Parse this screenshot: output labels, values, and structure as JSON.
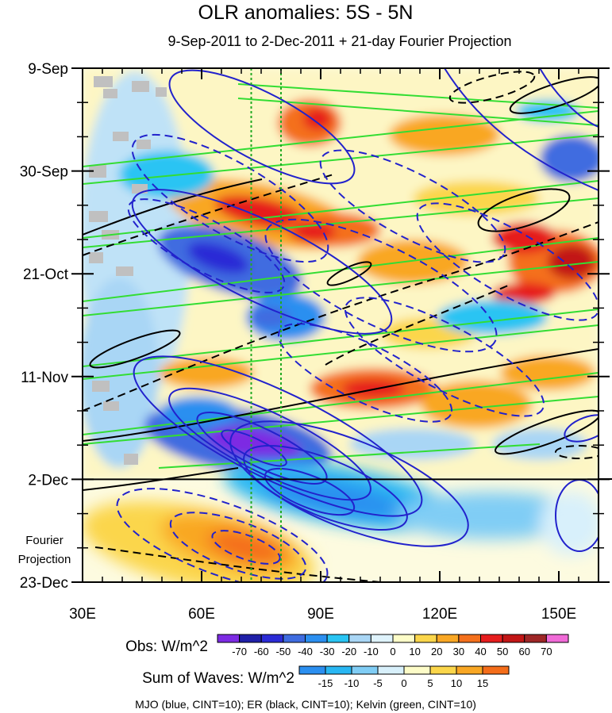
{
  "chart_data": {
    "type": "heatmap",
    "title": "OLR anomalies: 5S - 5N",
    "subtitle": "9-Sep-2011 to 2-Dec-2011 + 21-day Fourier Projection",
    "x_ticks": [
      {
        "label": "30E",
        "value": 30
      },
      {
        "label": "60E",
        "value": 60
      },
      {
        "label": "90E",
        "value": 90
      },
      {
        "label": "120E",
        "value": 120
      },
      {
        "label": "150E",
        "value": 150
      }
    ],
    "xlim": [
      30,
      160
    ],
    "y_ticks": [
      {
        "label": "9-Sep",
        "day": 0
      },
      {
        "label": "30-Sep",
        "day": 21
      },
      {
        "label": "21-Oct",
        "day": 42
      },
      {
        "label": "11-Nov",
        "day": 63
      },
      {
        "label": "2-Dec",
        "day": 84
      },
      {
        "label": "23-Dec",
        "day": 105
      }
    ],
    "ylim_days": [
      0,
      105
    ],
    "projection_start_day": 84,
    "projection_label_line1": "Fourier",
    "projection_label_line2": "Projection",
    "reference_lines_lon": [
      72.5,
      80
    ],
    "obs_colorbar": {
      "title": "Obs: W/m^2",
      "levels": [
        "-70",
        "-60",
        "-50",
        "-40",
        "-30",
        "-20",
        "-10",
        "0",
        "10",
        "20",
        "30",
        "40",
        "50",
        "60",
        "70"
      ],
      "colors": [
        "#7d2be3",
        "#1f1fa8",
        "#2b2bd6",
        "#3f6ce0",
        "#2b8ff0",
        "#29c4f3",
        "#a9d6f5",
        "#dff3fc",
        "#fdfdc8",
        "#fbd64b",
        "#f9a724",
        "#f4701c",
        "#e61d1d",
        "#c21616",
        "#9e2626",
        "#f06ad7"
      ]
    },
    "waves_colorbar": {
      "title": "Sum of Waves: W/m^2",
      "levels": [
        "-15",
        "-10",
        "-5",
        "0",
        "5",
        "10",
        "15"
      ],
      "colors": [
        "#2b8ff0",
        "#29b7f3",
        "#80cdf5",
        "#d8f0fb",
        "#fdfcc8",
        "#fbd64b",
        "#f9a724",
        "#f46d1a"
      ]
    },
    "footnote": "MJO (blue, CINT=10); ER (black, CINT=10); Kelvin (green, CINT=10)",
    "contour_colors": {
      "mjo": "#2222cc",
      "er": "#000000",
      "kelvin": "#33dd33",
      "reference": "#22aa22"
    }
  }
}
